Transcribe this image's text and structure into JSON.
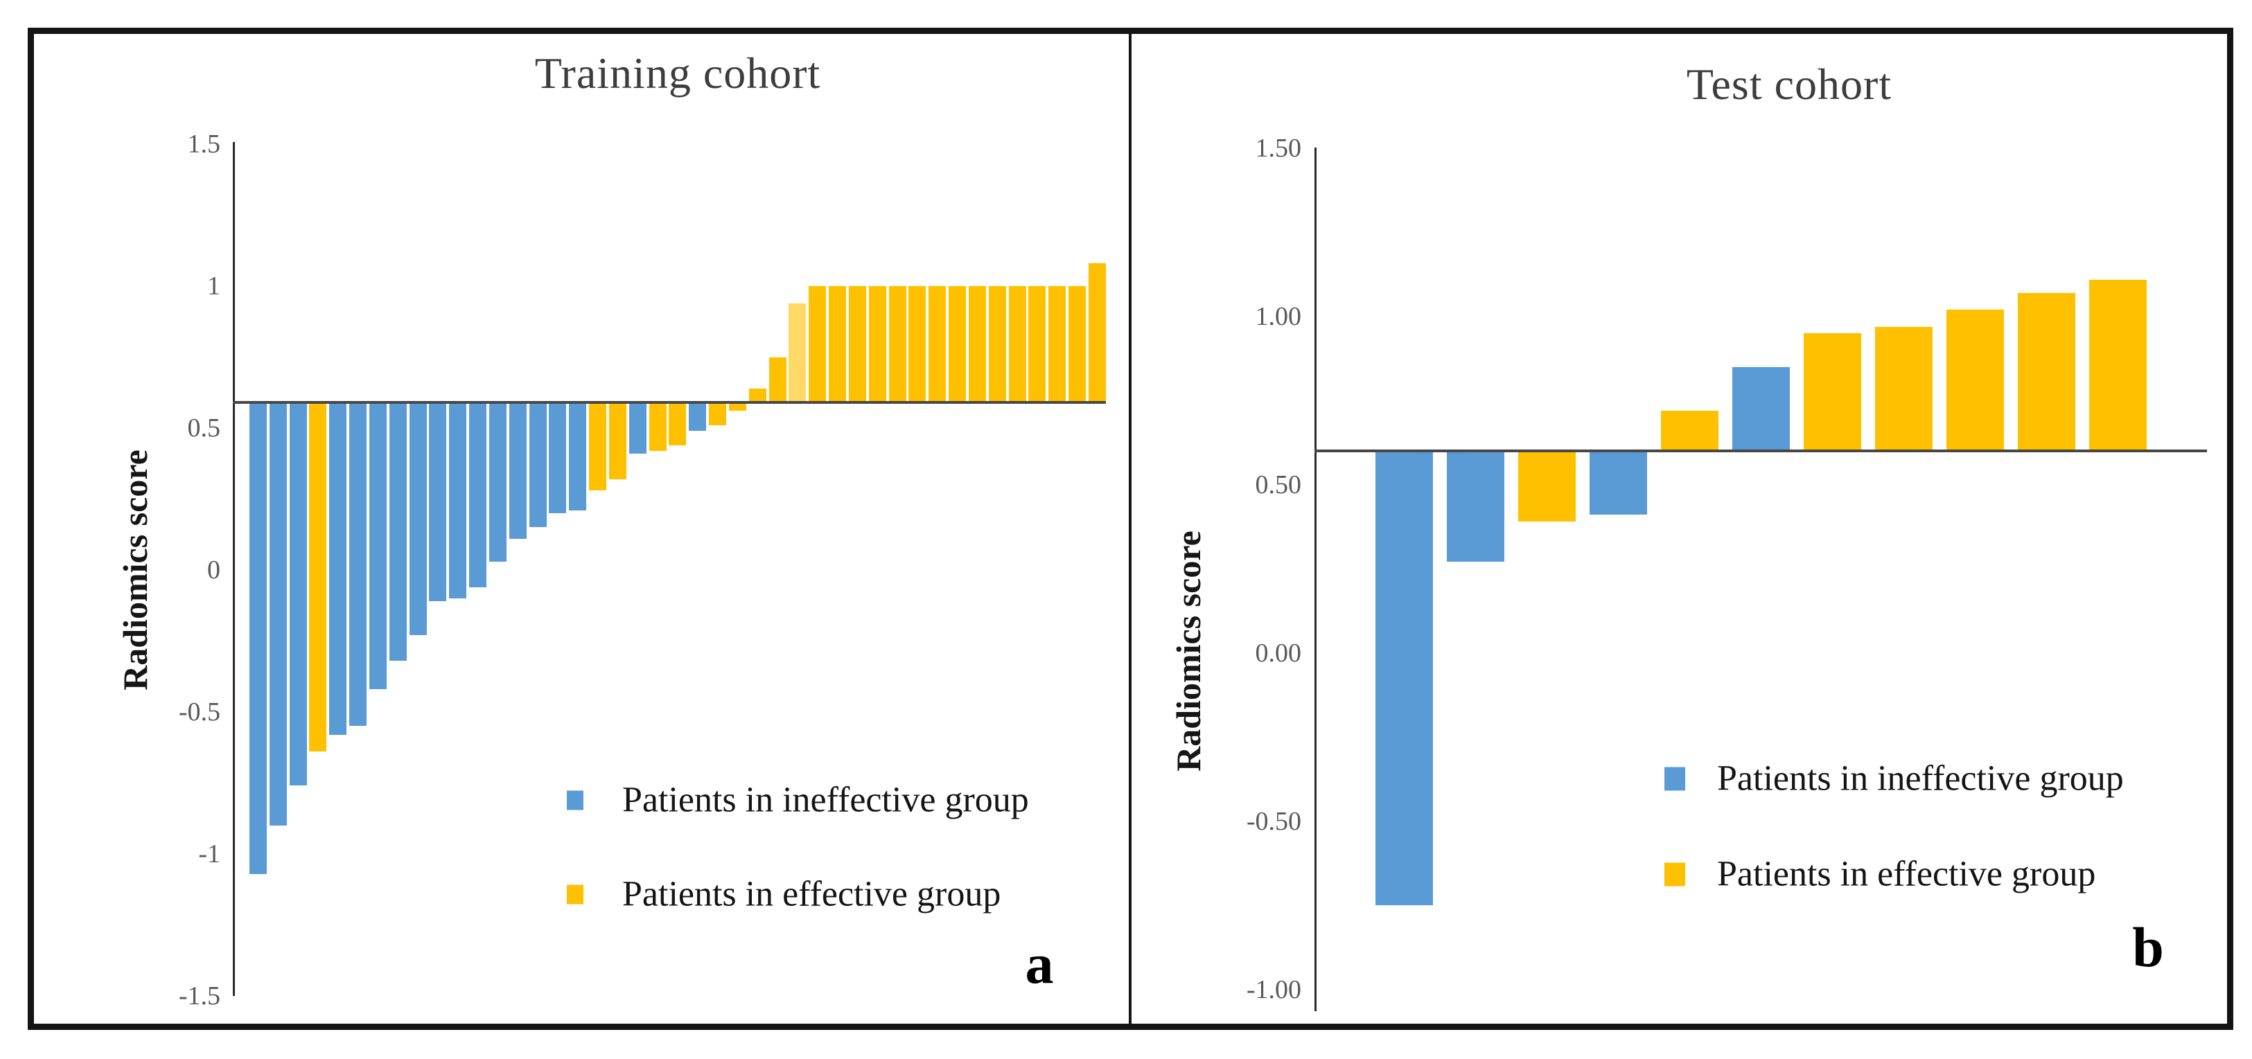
{
  "figure": {
    "background": "#FFFFFF",
    "border_color": "#141414"
  },
  "chart_data": [
    {
      "type": "bar",
      "title": "Training cohort",
      "panel_letter": "a",
      "ylabel": "Radiomics score",
      "ylim": [
        -1.5,
        1.5
      ],
      "baseline": 0.59,
      "grid": false,
      "legend_position": "inside-lower-right",
      "yticks": [
        {
          "label": "1.5",
          "value": 1.5
        },
        {
          "label": "1",
          "value": 1.0
        },
        {
          "label": "0.5",
          "value": 0.5
        },
        {
          "label": "0",
          "value": 0.0
        },
        {
          "label": "-0.5",
          "value": -0.5
        },
        {
          "label": "-1",
          "value": -1.0
        },
        {
          "label": "-1.5",
          "value": -1.5
        }
      ],
      "legend": [
        {
          "label": "Patients in ineffective group",
          "group": "ineffective"
        },
        {
          "label": "Patients in effective group",
          "group": "effective"
        }
      ],
      "colors": {
        "ineffective": "#5B9BD5",
        "effective": "#FFC000",
        "effective_light": "#FFD966"
      },
      "bars": [
        {
          "value": -1.07,
          "group": "ineffective"
        },
        {
          "value": -0.9,
          "group": "ineffective"
        },
        {
          "value": -0.76,
          "group": "ineffective"
        },
        {
          "value": -0.64,
          "group": "effective"
        },
        {
          "value": -0.58,
          "group": "ineffective"
        },
        {
          "value": -0.55,
          "group": "ineffective"
        },
        {
          "value": -0.42,
          "group": "ineffective"
        },
        {
          "value": -0.32,
          "group": "ineffective"
        },
        {
          "value": -0.23,
          "group": "ineffective"
        },
        {
          "value": -0.11,
          "group": "ineffective"
        },
        {
          "value": -0.1,
          "group": "ineffective"
        },
        {
          "value": -0.06,
          "group": "ineffective"
        },
        {
          "value": 0.03,
          "group": "ineffective"
        },
        {
          "value": 0.11,
          "group": "ineffective"
        },
        {
          "value": 0.15,
          "group": "ineffective"
        },
        {
          "value": 0.2,
          "group": "ineffective"
        },
        {
          "value": 0.21,
          "group": "ineffective"
        },
        {
          "value": 0.28,
          "group": "effective"
        },
        {
          "value": 0.32,
          "group": "effective"
        },
        {
          "value": 0.41,
          "group": "ineffective"
        },
        {
          "value": 0.42,
          "group": "effective"
        },
        {
          "value": 0.44,
          "group": "effective"
        },
        {
          "value": 0.49,
          "group": "ineffective"
        },
        {
          "value": 0.51,
          "group": "effective"
        },
        {
          "value": 0.56,
          "group": "effective"
        },
        {
          "value": 0.64,
          "group": "effective"
        },
        {
          "value": 0.75,
          "group": "effective"
        },
        {
          "value": 0.94,
          "group": "effective",
          "shade": "light"
        },
        {
          "value": 1.0,
          "group": "effective"
        },
        {
          "value": 1.0,
          "group": "effective"
        },
        {
          "value": 1.0,
          "group": "effective"
        },
        {
          "value": 1.0,
          "group": "effective"
        },
        {
          "value": 1.0,
          "group": "effective"
        },
        {
          "value": 1.0,
          "group": "effective"
        },
        {
          "value": 1.0,
          "group": "effective"
        },
        {
          "value": 1.0,
          "group": "effective"
        },
        {
          "value": 1.0,
          "group": "effective"
        },
        {
          "value": 1.0,
          "group": "effective"
        },
        {
          "value": 1.0,
          "group": "effective"
        },
        {
          "value": 1.0,
          "group": "effective"
        },
        {
          "value": 1.0,
          "group": "effective"
        },
        {
          "value": 1.0,
          "group": "effective"
        },
        {
          "value": 1.08,
          "group": "effective"
        }
      ]
    },
    {
      "type": "bar",
      "title": "Test cohort",
      "panel_letter": "b",
      "ylabel": "Radiomics score",
      "ylim": [
        -1.0,
        1.5
      ],
      "baseline": 0.6,
      "grid": false,
      "legend_position": "inside-lower-right",
      "yticks": [
        {
          "label": "1.50",
          "value": 1.5
        },
        {
          "label": "1.00",
          "value": 1.0
        },
        {
          "label": "0.50",
          "value": 0.5
        },
        {
          "label": "0.00",
          "value": 0.0
        },
        {
          "label": "-0.50",
          "value": -0.5
        },
        {
          "label": "-1.00",
          "value": -1.0
        }
      ],
      "legend": [
        {
          "label": "Patients in ineffective group",
          "group": "ineffective"
        },
        {
          "label": "Patients in effective group",
          "group": "effective"
        }
      ],
      "colors": {
        "ineffective": "#5B9BD5",
        "effective": "#FFC000",
        "effective_light": "#FFD966"
      },
      "bars": [
        {
          "value": -0.75,
          "group": "ineffective"
        },
        {
          "value": 0.27,
          "group": "ineffective"
        },
        {
          "value": 0.39,
          "group": "effective"
        },
        {
          "value": 0.41,
          "group": "ineffective"
        },
        {
          "value": 0.72,
          "group": "effective"
        },
        {
          "value": 0.85,
          "group": "ineffective"
        },
        {
          "value": 0.95,
          "group": "effective"
        },
        {
          "value": 0.97,
          "group": "effective"
        },
        {
          "value": 1.02,
          "group": "effective"
        },
        {
          "value": 1.07,
          "group": "effective"
        },
        {
          "value": 1.11,
          "group": "effective"
        }
      ]
    }
  ]
}
